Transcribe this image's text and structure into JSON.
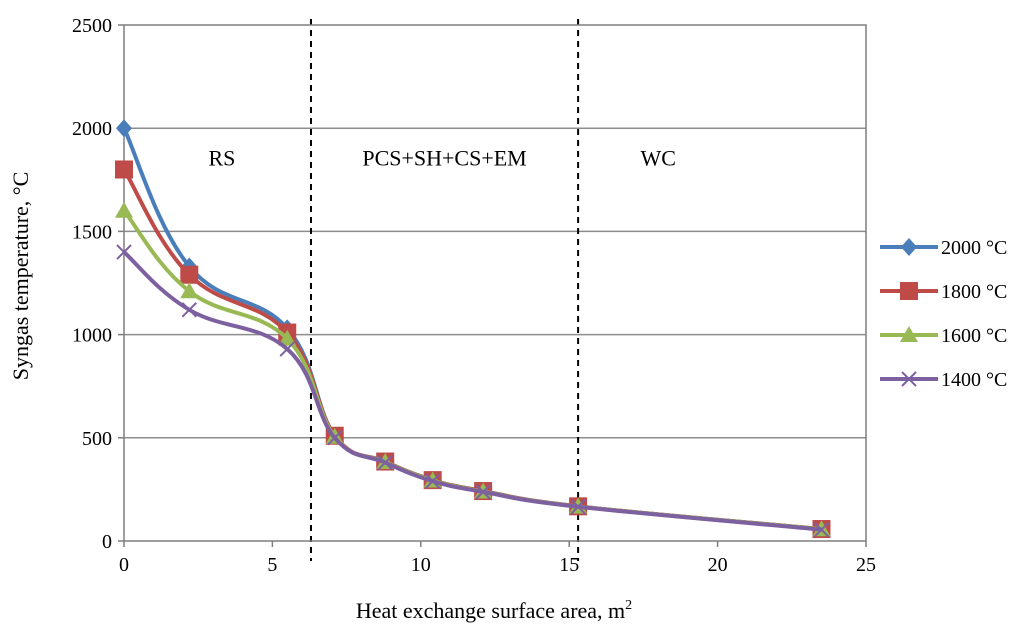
{
  "chart_data": {
    "type": "line",
    "xlabel": "Heat exchange surface area, m",
    "xlabel_superscript": "2",
    "ylabel": "Syngas temperature, °C",
    "xlim": [
      0,
      25
    ],
    "ylim": [
      0,
      2500
    ],
    "xticks": [
      "0",
      "5",
      "10",
      "15",
      "20",
      "25"
    ],
    "yticks": [
      "0",
      "500",
      "1000",
      "1500",
      "2000",
      "2500"
    ],
    "grid": "horizontal",
    "legend_position": "right",
    "region_dividers": [
      6.3,
      15.3
    ],
    "region_labels": [
      {
        "text": "RS",
        "x": 3.3,
        "y": 1820
      },
      {
        "text": "PCS+SH+CS+EM",
        "x": 10.8,
        "y": 1820
      },
      {
        "text": "WC",
        "x": 18.0,
        "y": 1820
      }
    ],
    "x": [
      0,
      2.2,
      5.5,
      7.1,
      8.8,
      10.4,
      12.1,
      15.3,
      23.5
    ],
    "series": [
      {
        "name": "2000 °C",
        "color": "#4a7ebb",
        "marker": "diamond",
        "values": [
          2000,
          1330,
          1030,
          510,
          385,
          295,
          242,
          168,
          58
        ]
      },
      {
        "name": "1800 °C",
        "color": "#be4b48",
        "marker": "square",
        "values": [
          1800,
          1290,
          1010,
          510,
          385,
          295,
          242,
          168,
          58
        ]
      },
      {
        "name": "1600 °C",
        "color": "#98b954",
        "marker": "triangle",
        "values": [
          1600,
          1210,
          980,
          505,
          383,
          293,
          240,
          167,
          57
        ]
      },
      {
        "name": "1400 °C",
        "color": "#7d60a0",
        "marker": "x",
        "values": [
          1400,
          1120,
          930,
          500,
          380,
          290,
          238,
          166,
          55
        ]
      }
    ]
  }
}
